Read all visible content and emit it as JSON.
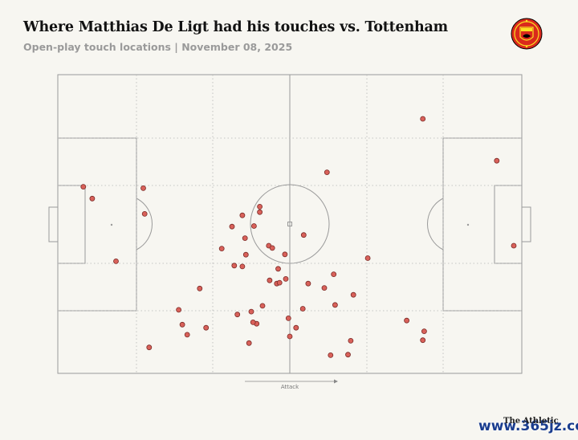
{
  "header": {
    "title": "Where Matthias De Ligt had his touches vs. Tottenham",
    "subtitle": "Open-play touch locations | November 08, 2025"
  },
  "club_badge": {
    "icon": "manchester-united-crest-icon",
    "colors": {
      "red": "#da291c",
      "gold": "#fbe122",
      "black": "#000000"
    }
  },
  "footer": {
    "brand": "The Athletic",
    "watermark": "www.365jz.com"
  },
  "chart_data": {
    "type": "scatter",
    "title": "Where Matthias De Ligt had his touches vs. Tottenham",
    "subtitle": "Open-play touch locations | November 08, 2025",
    "direction_label": "Attack",
    "pitch": {
      "x_range": [
        0,
        100
      ],
      "y_range": [
        0,
        100
      ],
      "attack_direction": "left-to-right",
      "zone_guides": true
    },
    "marker_color": "#d9615a",
    "marker_stroke": "#7a2b27",
    "points": [
      {
        "x": 3.9,
        "y": 37.1
      },
      {
        "x": 5.9,
        "y": 41.2
      },
      {
        "x": 17.3,
        "y": 37.6
      },
      {
        "x": 17.6,
        "y": 46.5
      },
      {
        "x": 11.2,
        "y": 62.9
      },
      {
        "x": 79.7,
        "y": 13.6
      },
      {
        "x": 25.2,
        "y": 79.7
      },
      {
        "x": 26.0,
        "y": 84.8
      },
      {
        "x": 27.1,
        "y": 88.3
      },
      {
        "x": 79.7,
        "y": 90.2
      },
      {
        "x": 80.0,
        "y": 87.1
      },
      {
        "x": 54.1,
        "y": 70.6
      },
      {
        "x": 48.9,
        "y": 60.5
      },
      {
        "x": 18.6,
        "y": 92.7
      },
      {
        "x": 29.9,
        "y": 72.3
      },
      {
        "x": 53.1,
        "y": 53.8
      },
      {
        "x": 59.8,
        "y": 67.4
      },
      {
        "x": 64.2,
        "y": 74.5
      },
      {
        "x": 59.1,
        "y": 95.4
      },
      {
        "x": 39.4,
        "y": 47.0
      },
      {
        "x": 31.3,
        "y": 85.9
      },
      {
        "x": 45.5,
        "y": 69.5
      },
      {
        "x": 47.4,
        "y": 65.5
      },
      {
        "x": 57.7,
        "y": 72.1
      },
      {
        "x": 39.4,
        "y": 64.7
      },
      {
        "x": 40.2,
        "y": 60.6
      },
      {
        "x": 42.0,
        "y": 50.7
      },
      {
        "x": 43.3,
        "y": 45.9
      },
      {
        "x": 43.3,
        "y": 44.0
      },
      {
        "x": 45.3,
        "y": 57.5
      },
      {
        "x": 47.1,
        "y": 70.6
      },
      {
        "x": 47.7,
        "y": 70.3
      },
      {
        "x": 43.9,
        "y": 78.3
      },
      {
        "x": 34.8,
        "y": 58.5
      },
      {
        "x": 40.0,
        "y": 54.9
      },
      {
        "x": 58.3,
        "y": 32.1
      },
      {
        "x": 67.4,
        "y": 61.8
      },
      {
        "x": 76.1,
        "y": 83.4
      },
      {
        "x": 96.2,
        "y": 28.1
      },
      {
        "x": 100.0,
        "y": 57.5
      },
      {
        "x": 60.1,
        "y": 78.0
      },
      {
        "x": 63.6,
        "y": 90.4
      },
      {
        "x": 63.0,
        "y": 95.2
      },
      {
        "x": 42.6,
        "y": 84.5
      },
      {
        "x": 49.1,
        "y": 69.0
      },
      {
        "x": 51.4,
        "y": 85.9
      },
      {
        "x": 50.0,
        "y": 88.9
      },
      {
        "x": 49.7,
        "y": 82.6
      },
      {
        "x": 41.4,
        "y": 80.3
      },
      {
        "x": 38.3,
        "y": 81.3
      },
      {
        "x": 40.9,
        "y": 91.2
      },
      {
        "x": 41.8,
        "y": 84.0
      },
      {
        "x": 37.6,
        "y": 64.4
      },
      {
        "x": 37.1,
        "y": 50.9
      },
      {
        "x": 46.1,
        "y": 58.3
      },
      {
        "x": 52.9,
        "y": 79.3
      }
    ]
  }
}
